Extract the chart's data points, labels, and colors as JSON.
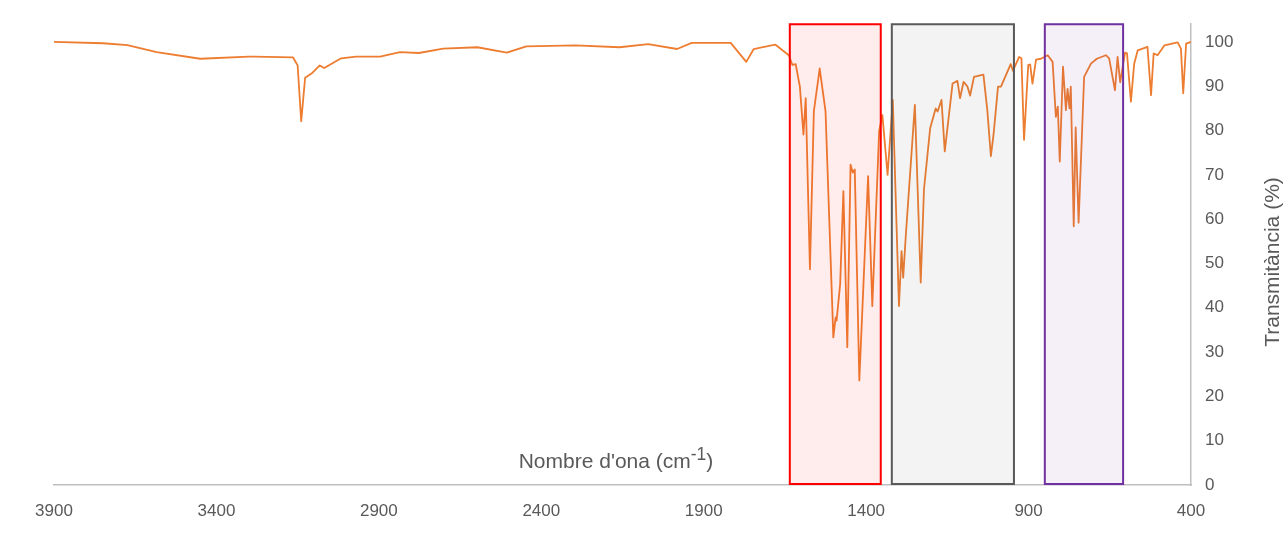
{
  "chart_data": {
    "type": "line",
    "xlabel": "Nombre d'ona (cm$^{-1}$)",
    "ylabel": "Transmitància (%)",
    "xlim": [
      3900,
      400
    ],
    "xticks": [
      3900,
      3400,
      2900,
      2400,
      1900,
      1400,
      900,
      400
    ],
    "ylim": [
      0,
      104
    ],
    "yticks": [
      0,
      10,
      20,
      30,
      40,
      50,
      60,
      70,
      80,
      90,
      100
    ],
    "grid": false,
    "legend": false,
    "marker": "none",
    "line_style": "solid",
    "bands": [
      {
        "axis": "x",
        "from": 1635,
        "to": 1355,
        "color": "#ff0000"
      },
      {
        "axis": "x",
        "from": 1321,
        "to": 945,
        "color": "#595959"
      },
      {
        "axis": "x",
        "from": 850,
        "to": 609,
        "color": "#7030a0"
      }
    ],
    "series": [
      {
        "color": "#ed7d31",
        "x": [
          3900,
          3749,
          3674,
          3584,
          3450,
          3299,
          3164,
          3150,
          3139,
          3127,
          3105,
          3082,
          3068,
          3016,
          2970,
          2896,
          2835,
          2777,
          2702,
          2597,
          2506,
          2446,
          2295,
          2159,
          2071,
          1982,
          1937,
          1817,
          1769,
          1746,
          1680,
          1638,
          1627,
          1617,
          1604,
          1593,
          1586,
          1573,
          1561,
          1543,
          1525,
          1501,
          1494,
          1491,
          1480,
          1470,
          1458,
          1448,
          1441,
          1435,
          1421,
          1394,
          1381,
          1360,
          1350,
          1334,
          1318,
          1299,
          1291,
          1286,
          1278,
          1250,
          1232,
          1222,
          1203,
          1186,
          1180,
          1168,
          1158,
          1134,
          1119,
          1111,
          1100,
          1088,
          1080,
          1068,
          1039,
          1027,
          1016,
          1008,
          994,
          985,
          955,
          948,
          929,
          922,
          914,
          901,
          895,
          888,
          877,
          862,
          841,
          826,
          816,
          810,
          804,
          794,
          785,
          780,
          774,
          770,
          761,
          755,
          746,
          729,
          708,
          690,
          662,
          652,
          634,
          626,
          618,
          603,
          597,
          585,
          575,
          564,
          534,
          523,
          515,
          503,
          482,
          441,
          431,
          424,
          415,
          400
        ],
        "values": [
          100,
          99.7,
          99.3,
          97.7,
          96.2,
          96.7,
          96.5,
          94.7,
          82.1,
          91.9,
          93,
          94.7,
          94.1,
          96.3,
          96.7,
          96.7,
          97.7,
          97.5,
          98.5,
          98.8,
          97.6,
          99,
          99.2,
          98.8,
          99.5,
          98.4,
          99.8,
          99.8,
          95.5,
          98.4,
          99.4,
          97,
          94.8,
          95,
          89.9,
          79.1,
          87.3,
          48.7,
          84.3,
          94,
          84.3,
          33.3,
          37.8,
          37.1,
          45.3,
          66.3,
          31.1,
          72.3,
          70.5,
          71.2,
          23.6,
          69.7,
          40.4,
          79.8,
          83.5,
          70,
          86.9,
          40.4,
          52.8,
          46.8,
          56.2,
          85.8,
          45.7,
          66.7,
          80.5,
          85,
          84.3,
          86.9,
          75.3,
          90.6,
          91.2,
          87.3,
          91,
          89.9,
          87.9,
          92.1,
          92.6,
          84.6,
          74.2,
          79,
          89.9,
          89.9,
          95,
          93.5,
          96.6,
          96.3,
          77.9,
          94.8,
          94.9,
          90.6,
          96,
          96.2,
          97,
          95.5,
          83.1,
          85.4,
          73,
          94.4,
          84.6,
          89.4,
          85,
          89.9,
          58.4,
          80.7,
          59.2,
          92.1,
          95.1,
          96.2,
          97,
          96.3,
          89.1,
          96.6,
          90.9,
          97.6,
          97.4,
          86.5,
          95,
          98.1,
          98.9,
          88,
          97.4,
          97,
          99.2,
          99.9,
          98.5,
          88.4,
          99.6,
          100
        ]
      }
    ]
  }
}
